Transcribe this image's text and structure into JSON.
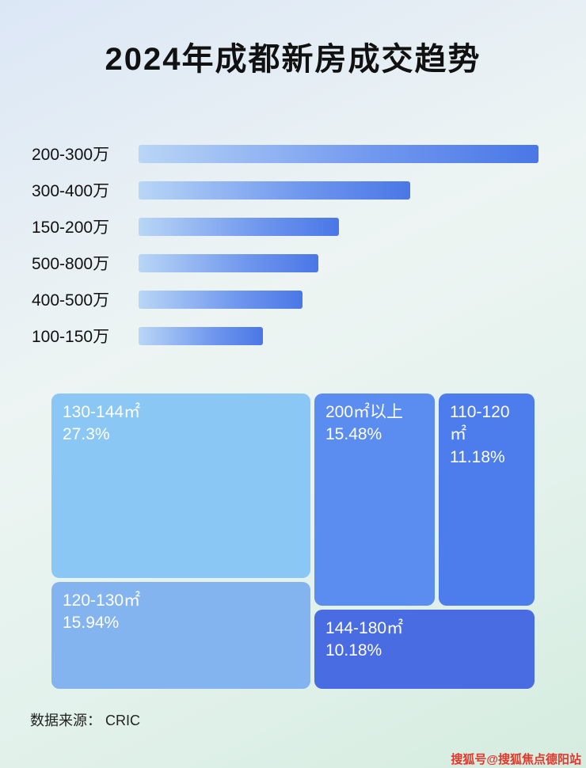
{
  "page": {
    "title": "2024年成都新房成交趋势",
    "source": "数据来源： CRIC",
    "watermark": "搜狐号@搜狐焦点德阳站"
  },
  "colors": {
    "bar_fill_gradient": "linear-gradient(90deg, #b9d6f6 0%, #6f97ee 60%, #4a77e6 100%)",
    "background_top": "#dce7f6",
    "background_bottom": "#d5ecdf",
    "title_color": "#111111",
    "watermark_color": "#e2382c"
  },
  "chart_data": [
    {
      "type": "bar",
      "orientation": "horizontal",
      "title": "2024年成都新房成交趋势",
      "categories": [
        "200-300万",
        "300-400万",
        "150-200万",
        "500-800万",
        "400-500万",
        "100-150万"
      ],
      "values": [
        100,
        68,
        50,
        45,
        41,
        31
      ],
      "value_note": "relative bar length as % of longest bar; no numeric axis shown in image",
      "xlabel": "",
      "ylabel": "",
      "grid": false,
      "legend": false
    },
    {
      "type": "heatmap",
      "subtype": "treemap",
      "items": [
        {
          "label": "130-144㎡",
          "value_pct": 27.3,
          "value_label": "27.3%",
          "color": "#8ac7f4"
        },
        {
          "label": "120-130㎡",
          "value_pct": 15.94,
          "value_label": "15.94%",
          "color": "#83b4ef"
        },
        {
          "label": "200㎡以上",
          "value_pct": 15.48,
          "value_label": "15.48%",
          "color": "#5b8cf0"
        },
        {
          "label": "110-120㎡",
          "value_pct": 11.18,
          "value_label": "11.18%",
          "color": "#4d7ced"
        },
        {
          "label": "144-180㎡",
          "value_pct": 10.18,
          "value_label": "10.18%",
          "color": "#4a6ce2"
        }
      ]
    }
  ]
}
